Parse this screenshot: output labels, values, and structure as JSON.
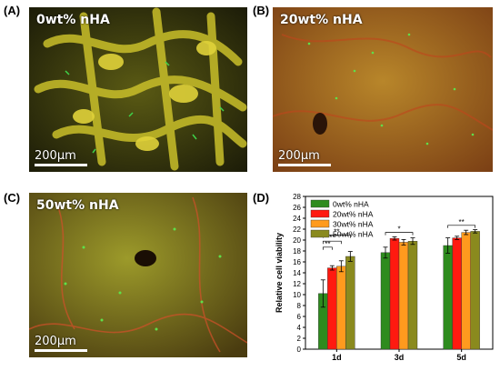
{
  "panels": {
    "a": {
      "label": "(A)",
      "title": "0wt% nHA",
      "scale": "200μm"
    },
    "b": {
      "label": "(B)",
      "title": "20wt% nHA",
      "scale": "200μm"
    },
    "c": {
      "label": "(C)",
      "title": "50wt% nHA",
      "scale": "200μm"
    },
    "d": {
      "label": "(D)"
    }
  },
  "colors": {
    "s0": "#2e8b1e",
    "s20": "#ff1a10",
    "s30": "#ff9a1e",
    "s50": "#8a8a1e"
  },
  "chart_data": {
    "type": "bar",
    "categories": [
      "1d",
      "3d",
      "5d"
    ],
    "ylabel": "Relative cell viability",
    "xlabel": "",
    "ylim": [
      0,
      28
    ],
    "yticks": [
      0,
      2,
      4,
      6,
      8,
      10,
      12,
      14,
      16,
      18,
      20,
      22,
      24,
      26,
      28
    ],
    "legend": "top-left",
    "series": [
      {
        "name": "0wt% nHA",
        "values": [
          10.2,
          17.7,
          19.0
        ],
        "errors": [
          2.5,
          1.0,
          1.4
        ]
      },
      {
        "name": "20wt% nHA",
        "values": [
          14.9,
          20.3,
          20.4
        ],
        "errors": [
          0.4,
          0.3,
          0.3
        ]
      },
      {
        "name": "30wt% nHA",
        "values": [
          15.2,
          19.6,
          21.4
        ],
        "errors": [
          1.0,
          0.5,
          0.4
        ]
      },
      {
        "name": "50wt% nHA",
        "values": [
          17.0,
          19.8,
          21.6
        ],
        "errors": [
          0.9,
          0.6,
          0.3
        ]
      }
    ],
    "annotations": [
      {
        "text": "**",
        "group": 0
      },
      {
        "text": "**",
        "group": 0
      },
      {
        "text": "**",
        "group": 0
      },
      {
        "text": "*",
        "group": 1
      },
      {
        "text": "**",
        "group": 2
      }
    ]
  }
}
